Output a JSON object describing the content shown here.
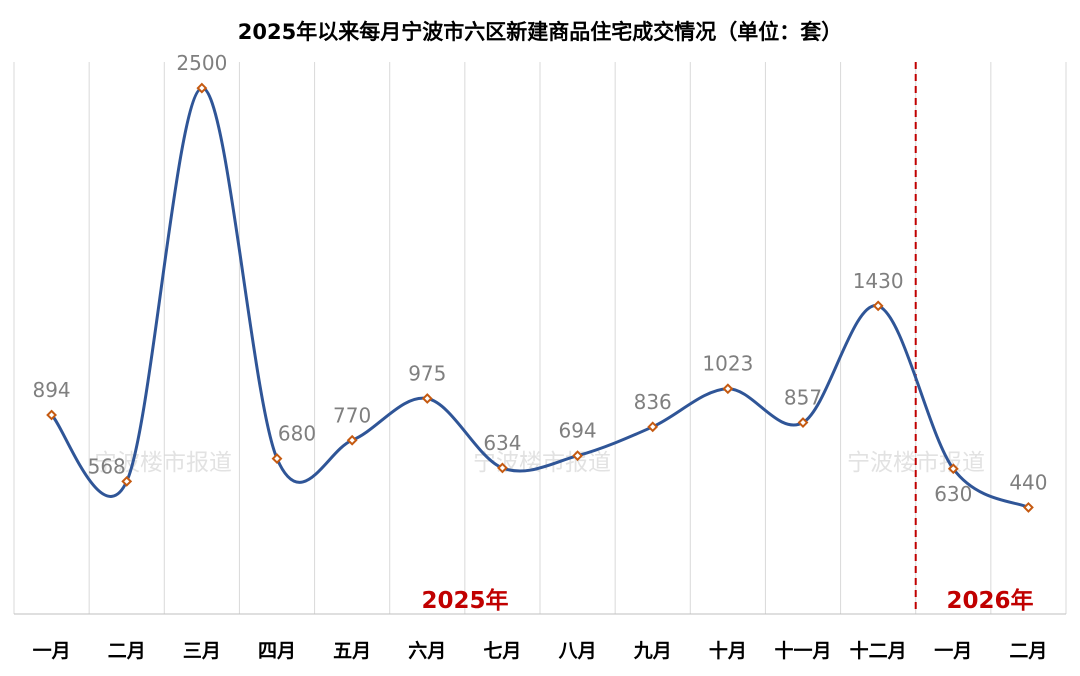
{
  "chart_data": {
    "type": "line",
    "title": "2025年以来每月宁波市六区新建商品住宅成交情况（单位：套）",
    "categories": [
      "一月",
      "二月",
      "三月",
      "四月",
      "五月",
      "六月",
      "七月",
      "八月",
      "九月",
      "十月",
      "十一月",
      "十二月",
      "一月",
      "二月"
    ],
    "series": [
      {
        "values": [
          894,
          568,
          2500,
          680,
          770,
          975,
          634,
          694,
          836,
          1023,
          857,
          1430,
          630,
          440
        ]
      }
    ],
    "data_labels": [
      "894",
      "568",
      "2500",
      "680",
      "770",
      "975",
      "634",
      "694",
      "836",
      "1023",
      "857",
      "1430",
      "630",
      "440"
    ],
    "ylim": [
      0,
      2800
    ],
    "grid": "vertical",
    "legend": "none",
    "smooth": true,
    "annotations": {
      "year_2025": "2025年",
      "year_2026": "2026年",
      "divider_after_index": 11
    },
    "colors": {
      "line": "#2f5597",
      "marker_edge": "#c55a11",
      "year_text": "#c00000",
      "divider": "#c00000",
      "data_label": "#7f7f7f"
    }
  },
  "watermarks": [
    "宁波楼市报道",
    "宁波楼市报道",
    "宁波楼市报道"
  ]
}
